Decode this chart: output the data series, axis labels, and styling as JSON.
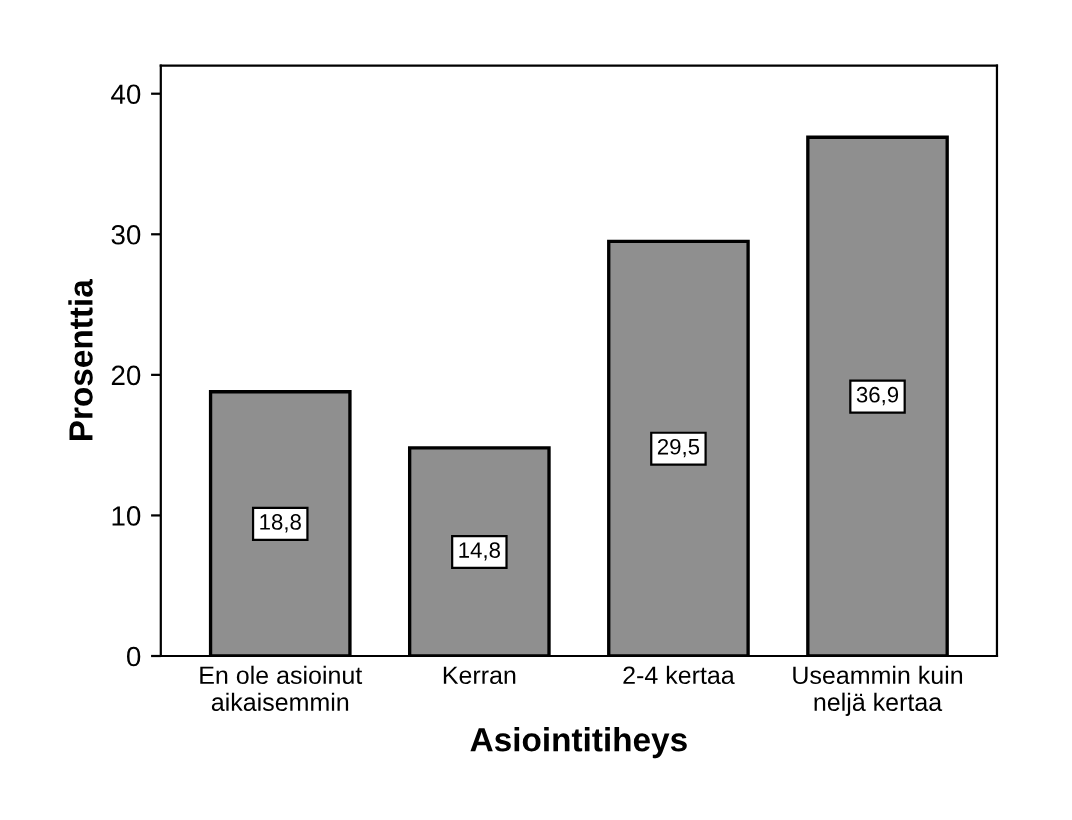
{
  "chart_data": {
    "type": "bar",
    "xlabel": "Asiointitiheys",
    "ylabel": "Prosenttia",
    "categories": [
      "En ole asioinut\naikaisemmin",
      "Kerran",
      "2-4 kertaa",
      "Useammin kuin\nneljä kertaa"
    ],
    "values": [
      18.8,
      14.8,
      29.5,
      36.9
    ],
    "value_labels": [
      "18,8",
      "14,8",
      "29,5",
      "36,9"
    ],
    "color": "#8f8f8f",
    "ylim": [
      0,
      42
    ],
    "yticks": [
      0,
      10,
      20,
      30,
      40
    ],
    "grid": false
  }
}
